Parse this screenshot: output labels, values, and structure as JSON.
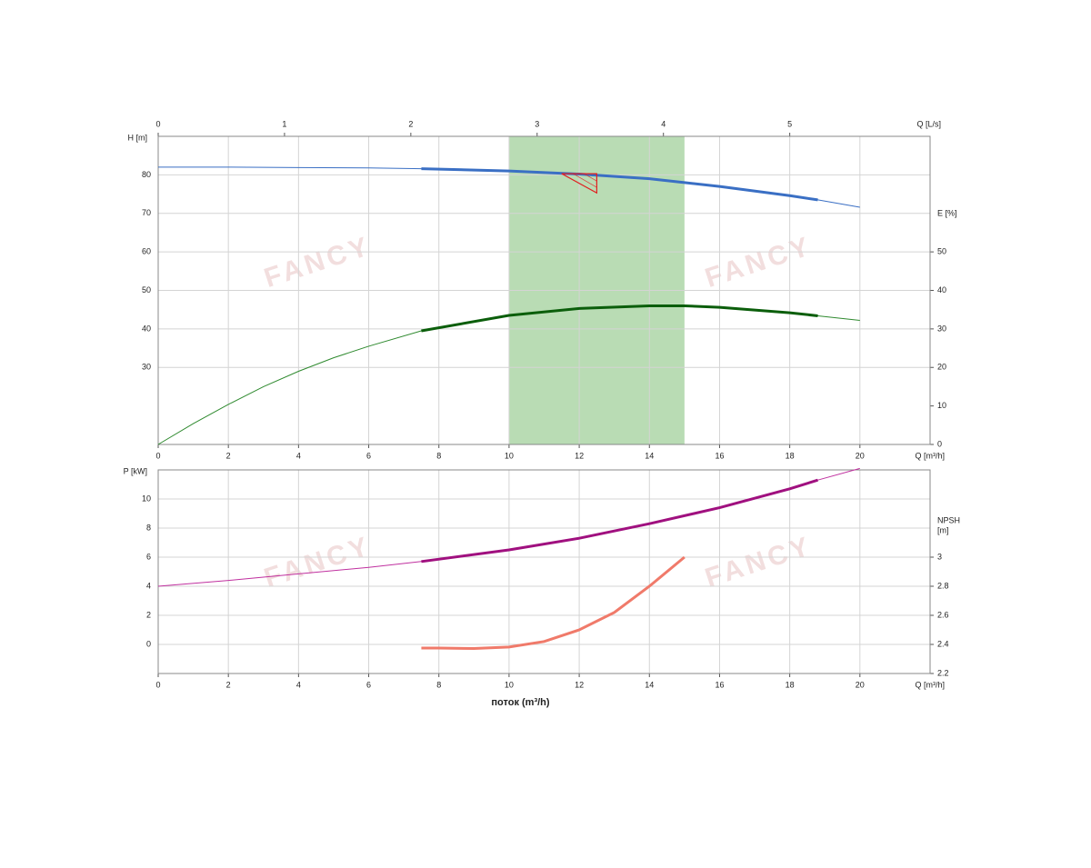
{
  "watermark": "FANCY",
  "chart_data": [
    {
      "type": "line",
      "y_label": "H [m]",
      "y2_label": "E [%]",
      "x_label": "Q [m³/h]",
      "x2_label": "Q [L/s]",
      "xlim": [
        0,
        22
      ],
      "xticks": [
        0,
        2,
        4,
        6,
        8,
        10,
        12,
        14,
        16,
        18,
        20
      ],
      "x2lim": [
        0,
        6.111
      ],
      "x2ticks": [
        0,
        1,
        2,
        3,
        4,
        5
      ],
      "ylim": [
        10,
        90
      ],
      "yticks": [
        30,
        40,
        50,
        60,
        70,
        80
      ],
      "y_color": "#3b5bd6",
      "y2lim": [
        0,
        80
      ],
      "y2ticks": [
        0,
        10,
        20,
        30,
        40,
        50
      ],
      "y2_color": "#1a7a1a",
      "grid": true,
      "band": [
        10,
        15
      ],
      "band_color": "#b9dcb4",
      "series": [
        {
          "color": "#3a6fc4",
          "width": 1,
          "x": [
            0,
            2,
            4,
            6,
            7.5,
            10,
            12,
            14,
            15,
            16,
            18,
            18.8,
            20
          ],
          "values": [
            82,
            82,
            81.9,
            81.8,
            81.6,
            81,
            80.2,
            79,
            78,
            77,
            74.6,
            73.5,
            71.6
          ]
        },
        {
          "color": "#3a6fc4",
          "width": 3,
          "x": [
            7.5,
            10,
            12,
            14,
            15,
            16,
            18,
            18.8
          ],
          "values": [
            81.6,
            81,
            80.2,
            79,
            78,
            77,
            74.6,
            73.5
          ]
        },
        {
          "color": "#2f8a2f",
          "width": 1,
          "axis": "y2",
          "x": [
            0,
            1,
            2,
            3,
            4,
            5,
            6,
            7.5,
            10,
            12,
            14,
            15,
            16,
            18,
            18.8,
            20
          ],
          "values": [
            0,
            5.4,
            10.4,
            15,
            19,
            22.5,
            25.5,
            29.5,
            33.5,
            35.3,
            36,
            36,
            35.6,
            34.2,
            33.4,
            32.2
          ]
        },
        {
          "color": "#0b5e0b",
          "width": 3,
          "axis": "y2",
          "x": [
            7.5,
            10,
            12,
            14,
            15,
            16,
            18,
            18.8
          ],
          "values": [
            29.5,
            33.5,
            35.3,
            36,
            36,
            35.6,
            34.2,
            33.4
          ]
        }
      ],
      "duty_triangle": {
        "color": "#e02020",
        "x": [
          11.5,
          12.5,
          12.5
        ],
        "values": [
          80.3,
          80.3,
          75.3
        ]
      }
    },
    {
      "type": "line",
      "y_label": "P [kW]",
      "y2_label": [
        "NPSH",
        "[m]"
      ],
      "x_label": "Q [m³/h]",
      "x_title": "поток (m³/h)",
      "xlim": [
        0,
        22
      ],
      "xticks": [
        0,
        2,
        4,
        6,
        8,
        10,
        12,
        14,
        16,
        18,
        20
      ],
      "ylim": [
        -2,
        12
      ],
      "yticks": [
        0,
        2,
        4,
        6,
        8,
        10
      ],
      "y_color": "#b0168f",
      "y2lim": [
        2.2,
        3.6
      ],
      "y2ticks": [
        2.2,
        2.4,
        2.6,
        2.8,
        3
      ],
      "y2_color": "#f07a6a",
      "grid": true,
      "series": [
        {
          "color": "#c0309f",
          "width": 1,
          "x": [
            0,
            2,
            4,
            6,
            7.5,
            10,
            12,
            14,
            16,
            18,
            18.8,
            20
          ],
          "values": [
            4.0,
            4.4,
            4.85,
            5.3,
            5.7,
            6.5,
            7.3,
            8.3,
            9.4,
            10.7,
            11.3,
            12.1
          ]
        },
        {
          "color": "#a0107f",
          "width": 3,
          "x": [
            7.5,
            10,
            12,
            14,
            16,
            18,
            18.8
          ],
          "values": [
            5.7,
            6.5,
            7.3,
            8.3,
            9.4,
            10.7,
            11.3
          ]
        },
        {
          "color": "#f07a6a",
          "width": 3,
          "axis": "y2",
          "x": [
            7.5,
            8,
            9,
            10,
            11,
            12,
            13,
            14,
            15
          ],
          "values": [
            2.375,
            2.375,
            2.372,
            2.382,
            2.42,
            2.5,
            2.62,
            2.8,
            3.0
          ]
        }
      ]
    }
  ]
}
